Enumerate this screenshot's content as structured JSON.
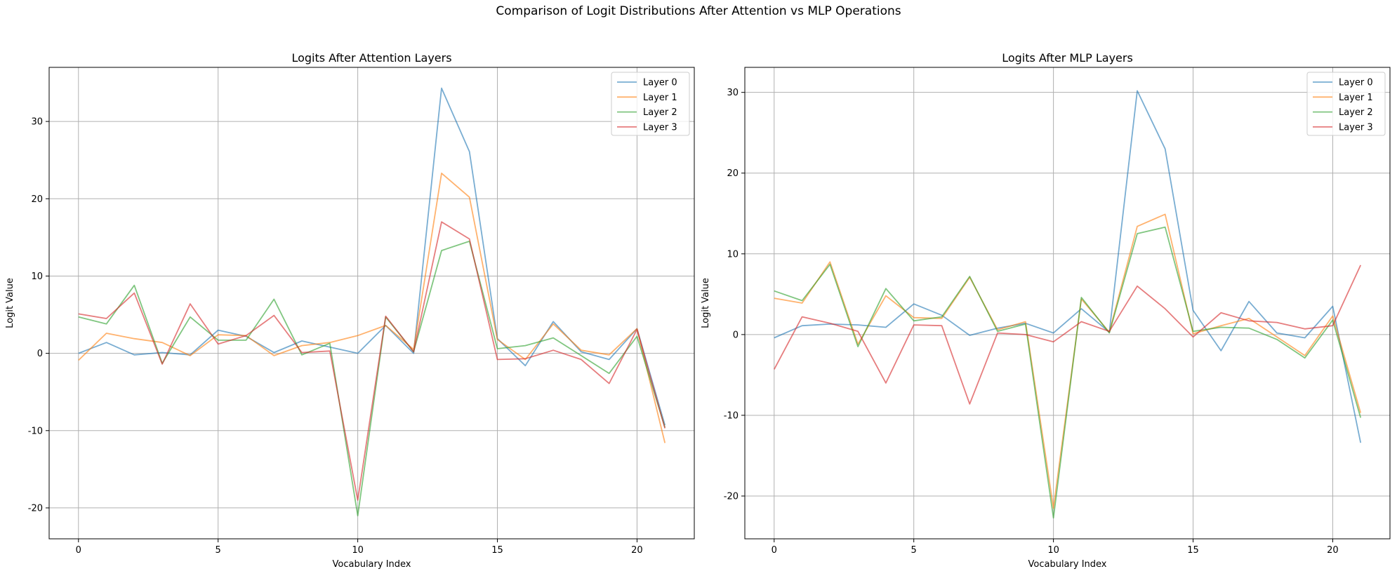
{
  "figure": {
    "title": "Comparison of Logit Distributions After Attention vs MLP Operations"
  },
  "colors": {
    "layer0": "#1f77b4",
    "layer1": "#ff7f0e",
    "layer2": "#2ca02c",
    "layer3": "#d62728",
    "grid": "#b0b0b0"
  },
  "chart_data": [
    {
      "type": "line",
      "title": "Logits After Attention Layers",
      "xlabel": "Vocabulary Index",
      "ylabel": "Logit Value",
      "xlim": [
        -1.05,
        22.05
      ],
      "ylim": [
        -24,
        37
      ],
      "xticks": [
        0,
        5,
        10,
        15,
        20
      ],
      "yticks": [
        -20,
        -10,
        0,
        10,
        20,
        30
      ],
      "grid": true,
      "legend": "top-right",
      "x": [
        0,
        1,
        2,
        3,
        4,
        5,
        6,
        7,
        8,
        9,
        10,
        11,
        12,
        13,
        14,
        15,
        16,
        17,
        18,
        19,
        20,
        21
      ],
      "series": [
        {
          "name": "Layer 0",
          "color": "#1f77b4",
          "values": [
            0.0,
            1.4,
            -0.2,
            0.1,
            -0.2,
            3.0,
            2.2,
            0.1,
            1.6,
            0.8,
            0.0,
            3.6,
            0.0,
            34.3,
            26.1,
            1.9,
            -1.6,
            4.1,
            0.2,
            -0.8,
            3.2,
            -9.3
          ]
        },
        {
          "name": "Layer 1",
          "color": "#ff7f0e",
          "values": [
            -0.9,
            2.6,
            1.9,
            1.4,
            -0.3,
            2.4,
            2.3,
            -0.3,
            1.0,
            1.4,
            2.3,
            3.6,
            0.5,
            23.3,
            20.2,
            1.8,
            -0.8,
            3.8,
            0.4,
            -0.2,
            3.2,
            -11.6
          ]
        },
        {
          "name": "Layer 2",
          "color": "#2ca02c",
          "values": [
            4.7,
            3.8,
            8.8,
            -1.3,
            4.7,
            1.7,
            1.7,
            7.0,
            -0.2,
            1.3,
            -21.0,
            4.7,
            0.2,
            13.3,
            14.5,
            0.6,
            1.0,
            2.0,
            -0.3,
            -2.6,
            2.2,
            -9.6
          ]
        },
        {
          "name": "Layer 3",
          "color": "#d62728",
          "values": [
            5.1,
            4.5,
            7.8,
            -1.4,
            6.4,
            1.2,
            2.3,
            4.9,
            0.1,
            0.3,
            -19.0,
            4.8,
            0.2,
            17.0,
            14.8,
            -0.8,
            -0.7,
            0.4,
            -0.8,
            -3.9,
            3.1,
            -9.7
          ]
        }
      ]
    },
    {
      "type": "line",
      "title": "Logits After MLP Layers",
      "xlabel": "Vocabulary Index",
      "ylabel": "Logit Value",
      "xlim": [
        -1.05,
        22.05
      ],
      "ylim": [
        -25.3,
        33.1
      ],
      "xticks": [
        0,
        5,
        10,
        15,
        20
      ],
      "yticks": [
        -20,
        -10,
        0,
        10,
        20,
        30
      ],
      "grid": true,
      "legend": "top-right",
      "x": [
        0,
        1,
        2,
        3,
        4,
        5,
        6,
        7,
        8,
        9,
        10,
        11,
        12,
        13,
        14,
        15,
        16,
        17,
        18,
        19,
        20,
        21
      ],
      "series": [
        {
          "name": "Layer 0",
          "color": "#1f77b4",
          "values": [
            -0.4,
            1.1,
            1.3,
            1.2,
            0.9,
            3.8,
            2.4,
            -0.1,
            0.8,
            1.4,
            0.2,
            3.2,
            0.3,
            30.2,
            23.0,
            3.0,
            -2.0,
            4.1,
            0.2,
            -0.4,
            3.5,
            -13.4
          ]
        },
        {
          "name": "Layer 1",
          "color": "#ff7f0e",
          "values": [
            4.5,
            3.9,
            9.0,
            -1.2,
            4.8,
            2.1,
            2.0,
            7.1,
            0.6,
            1.6,
            -21.5,
            4.4,
            0.3,
            13.4,
            14.9,
            0.1,
            1.1,
            2.0,
            -0.3,
            -2.6,
            2.3,
            -9.7
          ]
        },
        {
          "name": "Layer 2",
          "color": "#2ca02c",
          "values": [
            5.4,
            4.2,
            8.7,
            -1.5,
            5.7,
            1.7,
            2.2,
            7.2,
            0.4,
            1.3,
            -22.7,
            4.6,
            0.2,
            12.5,
            13.3,
            0.4,
            0.9,
            0.8,
            -0.6,
            -2.9,
            1.8,
            -10.3
          ]
        },
        {
          "name": "Layer 3",
          "color": "#d62728",
          "values": [
            -4.3,
            2.2,
            1.4,
            0.4,
            -6.0,
            1.2,
            1.1,
            -8.6,
            0.2,
            0.0,
            -0.9,
            1.6,
            0.4,
            6.0,
            3.2,
            -0.3,
            2.7,
            1.7,
            1.5,
            0.7,
            1.1,
            8.6
          ]
        }
      ]
    }
  ]
}
